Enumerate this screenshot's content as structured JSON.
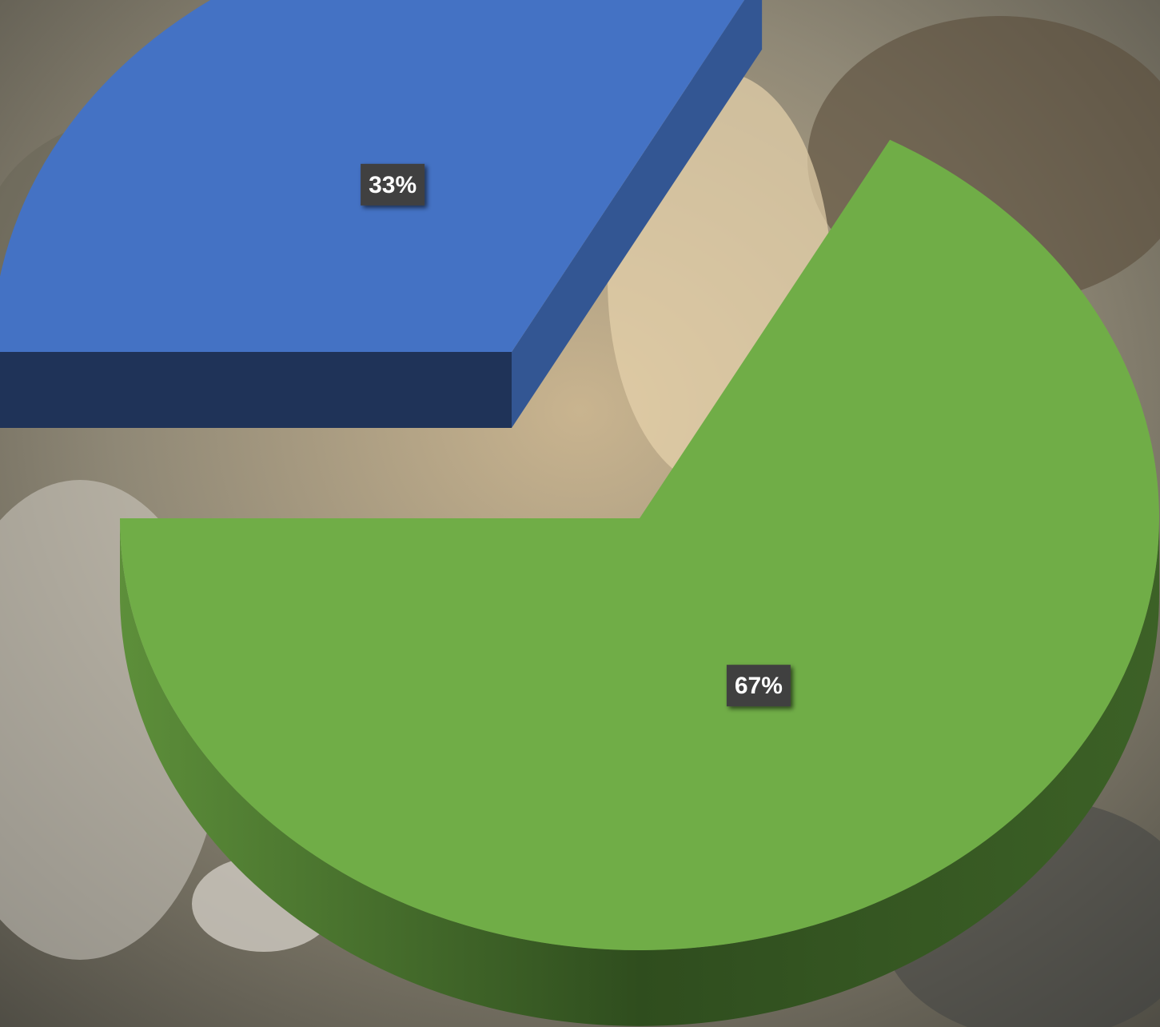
{
  "chart_data": {
    "type": "pie3d",
    "values": [
      33,
      67
    ],
    "value_labels": [
      "33%",
      "67%"
    ],
    "colors": [
      "#4472c4",
      "#70ad47"
    ]
  }
}
